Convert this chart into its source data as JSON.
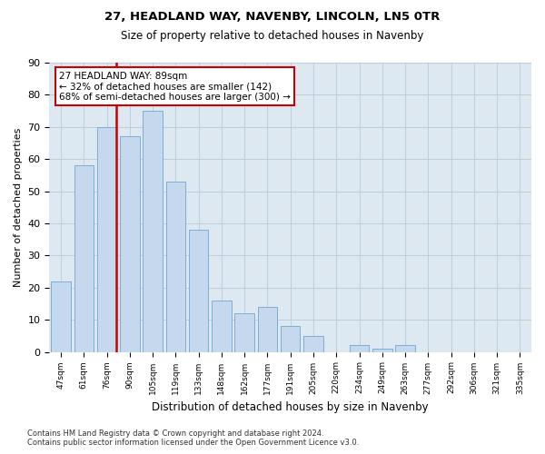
{
  "title1": "27, HEADLAND WAY, NAVENBY, LINCOLN, LN5 0TR",
  "title2": "Size of property relative to detached houses in Navenby",
  "xlabel": "Distribution of detached houses by size in Navenby",
  "ylabel": "Number of detached properties",
  "categories": [
    "47sqm",
    "61sqm",
    "76sqm",
    "90sqm",
    "105sqm",
    "119sqm",
    "133sqm",
    "148sqm",
    "162sqm",
    "177sqm",
    "191sqm",
    "205sqm",
    "220sqm",
    "234sqm",
    "249sqm",
    "263sqm",
    "277sqm",
    "292sqm",
    "306sqm",
    "321sqm",
    "335sqm"
  ],
  "values": [
    22,
    58,
    70,
    67,
    75,
    53,
    38,
    16,
    12,
    14,
    8,
    5,
    0,
    2,
    1,
    2,
    0,
    0,
    0,
    0,
    0
  ],
  "bar_color": "#c5d8ed",
  "bar_edge_color": "#7aafd4",
  "vline_color": "#cc0000",
  "ylim": [
    0,
    90
  ],
  "yticks": [
    0,
    10,
    20,
    30,
    40,
    50,
    60,
    70,
    80,
    90
  ],
  "annotation_text": "27 HEADLAND WAY: 89sqm\n← 32% of detached houses are smaller (142)\n68% of semi-detached houses are larger (300) →",
  "annotation_box_color": "#ffffff",
  "annotation_box_edge": "#cc0000",
  "footer": "Contains HM Land Registry data © Crown copyright and database right 2024.\nContains public sector information licensed under the Open Government Licence v3.0.",
  "bg_color": "#ffffff",
  "plot_bg_color": "#dde8f0",
  "grid_color": "#b8cfe0"
}
